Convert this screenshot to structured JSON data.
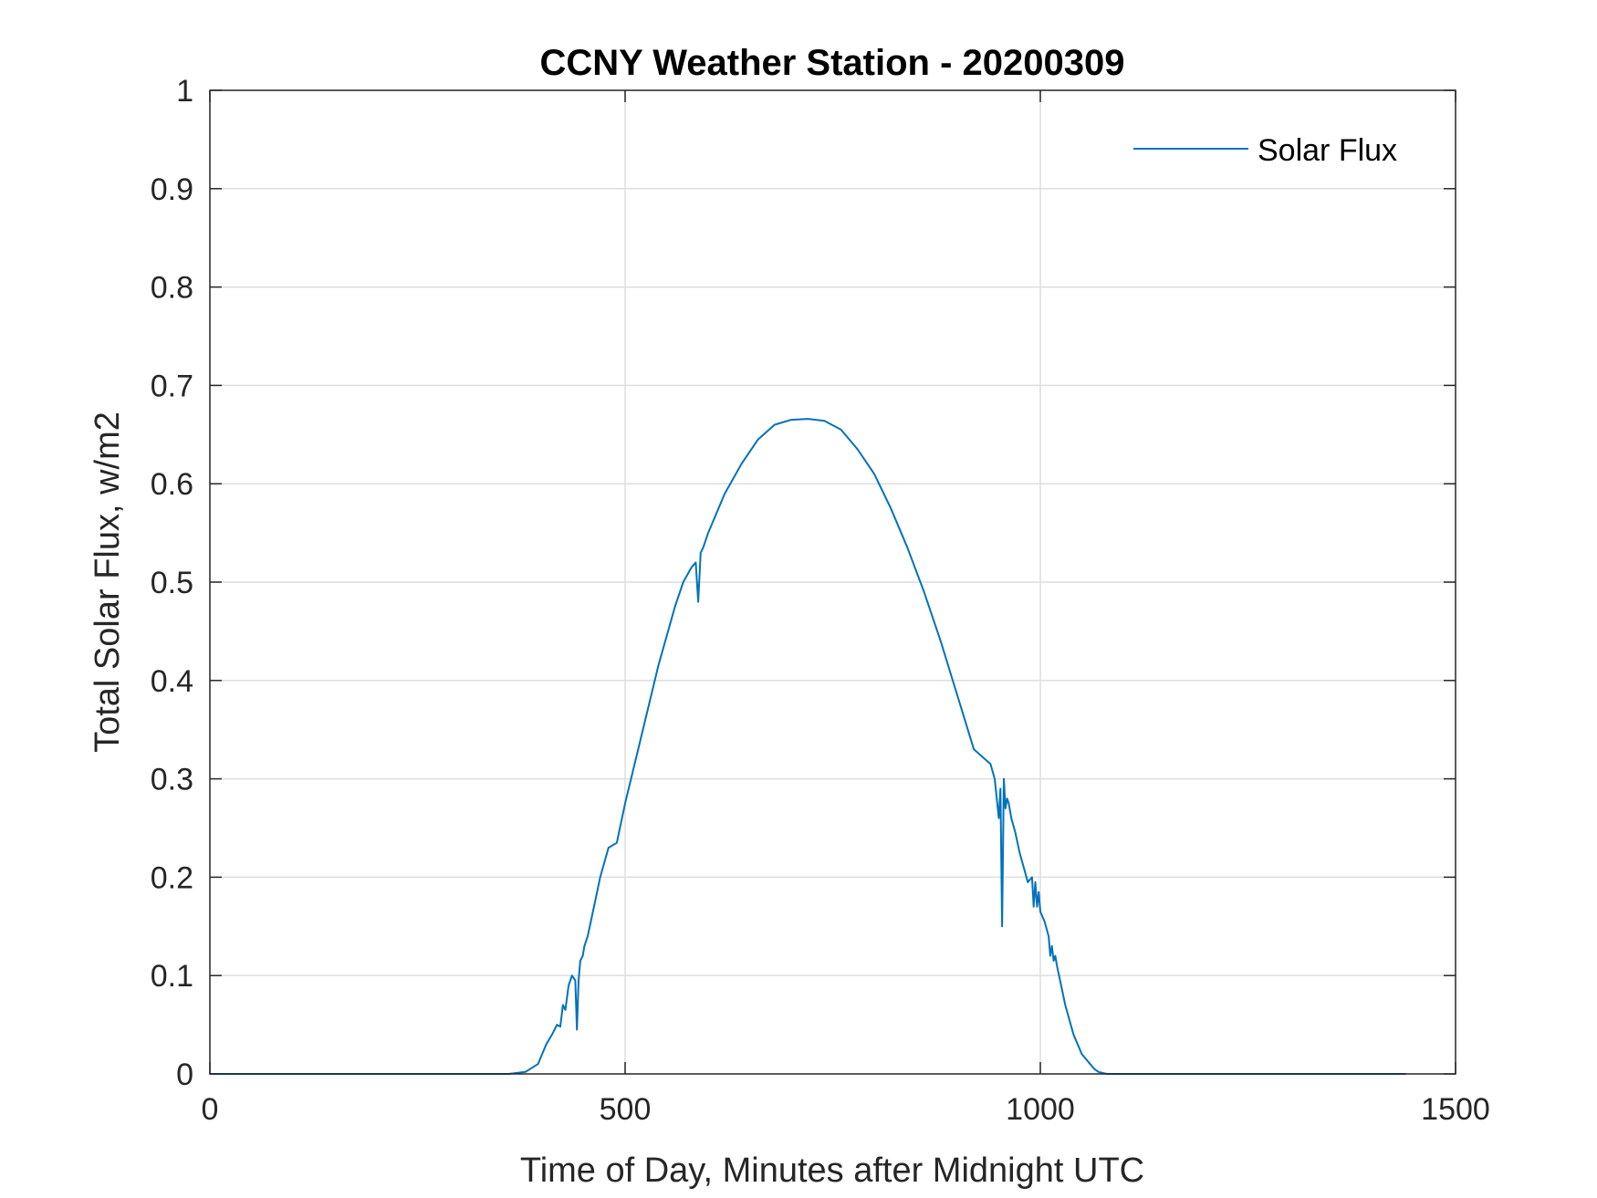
{
  "chart_data": {
    "type": "line",
    "title": "CCNY Weather Station - 20200309",
    "xlabel": "Time of Day, Minutes after Midnight UTC",
    "ylabel": "Total Solar Flux, w/m2",
    "xlim": [
      0,
      1500
    ],
    "ylim": [
      0,
      1
    ],
    "xticks": [
      0,
      500,
      1000,
      1500
    ],
    "xtick_labels": [
      "0",
      "500",
      "1000",
      "1500"
    ],
    "yticks": [
      0,
      0.1,
      0.2,
      0.3,
      0.4,
      0.5,
      0.6,
      0.7,
      0.8,
      0.9,
      1
    ],
    "ytick_labels": [
      "0",
      "0.1",
      "0.2",
      "0.3",
      "0.4",
      "0.5",
      "0.6",
      "0.7",
      "0.8",
      "0.9",
      "1"
    ],
    "grid": true,
    "legend_position": "top-right",
    "color": "#0072BD",
    "series": [
      {
        "name": "Solar Flux",
        "x": [
          0,
          200,
          360,
          380,
          395,
          405,
          412,
          418,
          422,
          425,
          428,
          432,
          436,
          440,
          442,
          444,
          446,
          449,
          451,
          455,
          460,
          470,
          480,
          490,
          500,
          510,
          520,
          530,
          540,
          550,
          560,
          570,
          580,
          585,
          588,
          591,
          594,
          600,
          620,
          640,
          660,
          680,
          700,
          720,
          740,
          760,
          780,
          800,
          820,
          840,
          860,
          880,
          900,
          920,
          940,
          945,
          950,
          952,
          954,
          956,
          958,
          960,
          962,
          965,
          970,
          975,
          980,
          985,
          990,
          992,
          994,
          996,
          998,
          1000,
          1005,
          1010,
          1012,
          1014,
          1016,
          1018,
          1020,
          1025,
          1030,
          1040,
          1050,
          1060,
          1065,
          1070,
          1080,
          1100,
          1200,
          1300,
          1440
        ],
        "values": [
          0,
          0,
          0,
          0.002,
          0.01,
          0.03,
          0.04,
          0.05,
          0.048,
          0.07,
          0.065,
          0.09,
          0.1,
          0.095,
          0.045,
          0.095,
          0.115,
          0.12,
          0.13,
          0.14,
          0.16,
          0.2,
          0.23,
          0.235,
          0.275,
          0.31,
          0.345,
          0.38,
          0.415,
          0.445,
          0.475,
          0.5,
          0.515,
          0.52,
          0.48,
          0.53,
          0.535,
          0.55,
          0.59,
          0.62,
          0.645,
          0.66,
          0.665,
          0.666,
          0.664,
          0.655,
          0.635,
          0.61,
          0.575,
          0.535,
          0.49,
          0.44,
          0.385,
          0.33,
          0.315,
          0.3,
          0.26,
          0.29,
          0.15,
          0.3,
          0.27,
          0.28,
          0.275,
          0.26,
          0.245,
          0.225,
          0.21,
          0.195,
          0.2,
          0.17,
          0.195,
          0.17,
          0.185,
          0.165,
          0.155,
          0.14,
          0.12,
          0.13,
          0.115,
          0.12,
          0.11,
          0.09,
          0.07,
          0.04,
          0.02,
          0.01,
          0.005,
          0.002,
          0,
          0,
          0,
          0,
          0
        ]
      }
    ]
  }
}
